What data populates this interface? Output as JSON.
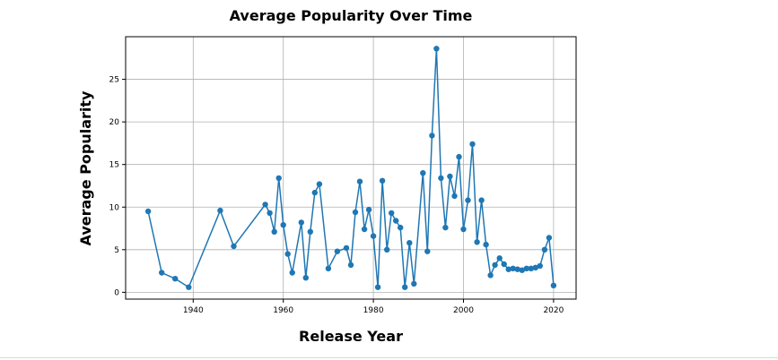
{
  "chart_data": {
    "type": "line",
    "title": "Average Popularity Over Time",
    "xlabel": "Release Year",
    "ylabel": "Average Popularity",
    "xlim": [
      1925,
      2025
    ],
    "ylim": [
      -0.8,
      30
    ],
    "xticks": [
      1940,
      1960,
      1980,
      2000,
      2020
    ],
    "yticks": [
      0,
      5,
      10,
      15,
      20,
      25
    ],
    "grid": true,
    "legend": "none",
    "colors": {
      "line": "#1f77b4",
      "grid": "#b0b0b0",
      "axis": "#000000"
    },
    "series": [
      {
        "x": [
          1930,
          1933,
          1936,
          1939,
          1946,
          1949,
          1956,
          1957,
          1958,
          1959,
          1960,
          1961,
          1962,
          1964,
          1965,
          1966,
          1967,
          1968,
          1970,
          1972,
          1974,
          1975,
          1976,
          1977,
          1978,
          1979,
          1980,
          1981,
          1982,
          1983,
          1984,
          1985,
          1986,
          1987,
          1988,
          1989,
          1991,
          1992,
          1993,
          1994,
          1995,
          1996,
          1997,
          1998,
          1999,
          2000,
          2001,
          2002,
          2003,
          2004,
          2005,
          2006,
          2007,
          2008,
          2009,
          2010,
          2011,
          2012,
          2013,
          2014,
          2015,
          2016,
          2017,
          2018,
          2019,
          2020
        ],
        "y": [
          9.5,
          2.3,
          1.6,
          0.6,
          9.6,
          5.4,
          10.3,
          9.3,
          7.1,
          13.4,
          7.9,
          4.5,
          2.3,
          8.2,
          1.7,
          7.1,
          11.7,
          12.7,
          2.8,
          4.8,
          5.2,
          3.2,
          9.4,
          13.0,
          7.4,
          9.7,
          6.6,
          0.6,
          13.1,
          5.0,
          9.3,
          8.4,
          7.6,
          0.6,
          5.8,
          1.0,
          14.0,
          4.8,
          18.4,
          28.6,
          13.4,
          7.6,
          13.6,
          11.3,
          15.9,
          7.4,
          10.8,
          17.4,
          5.9,
          10.8,
          5.6,
          2.0,
          3.2,
          4.0,
          3.3,
          2.7,
          2.8,
          2.7,
          2.6,
          2.8,
          2.8,
          2.9,
          3.1,
          5.0,
          6.4,
          0.8
        ]
      }
    ]
  }
}
